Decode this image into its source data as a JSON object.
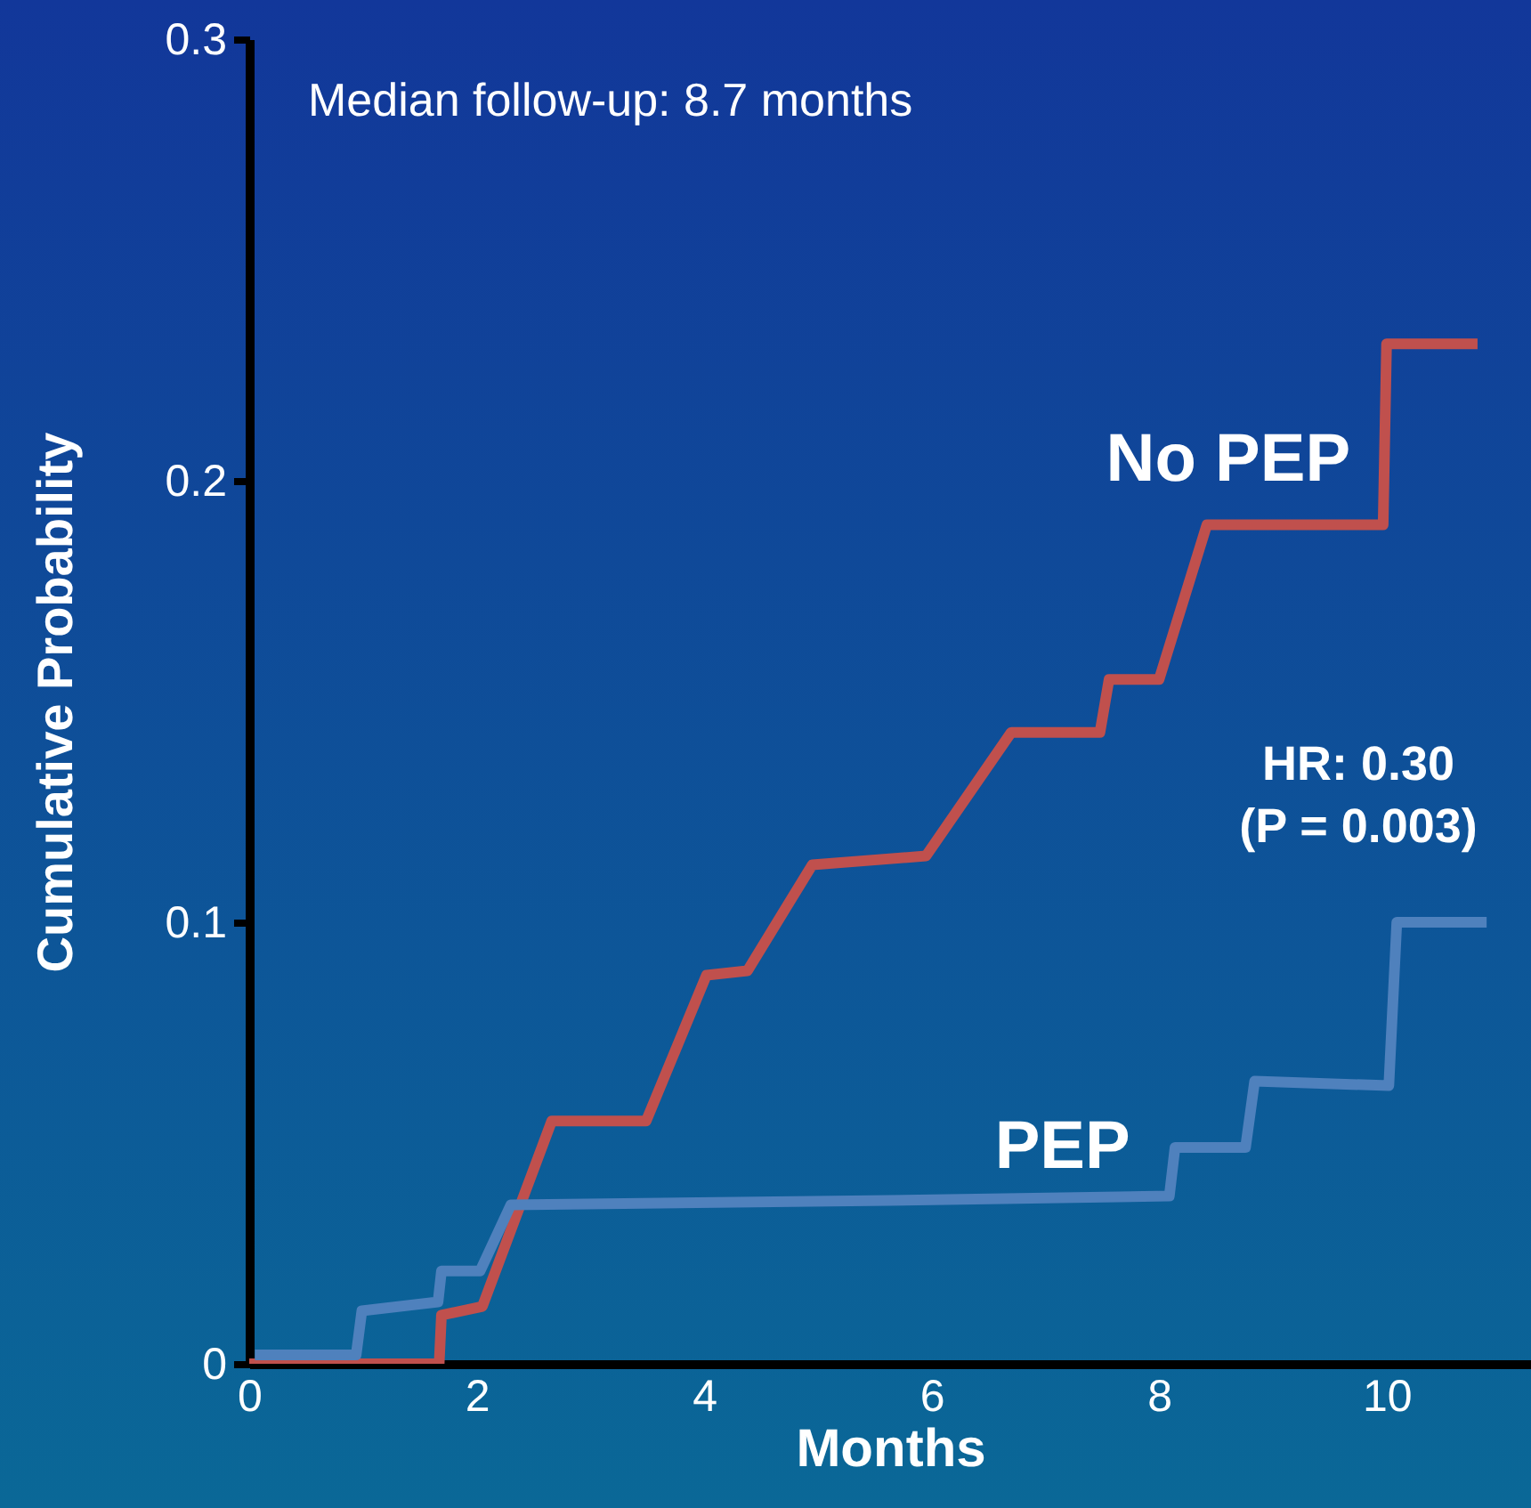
{
  "chart_data": {
    "type": "line",
    "xlabel": "Months",
    "ylabel": "Cumulative Probability",
    "xlim": [
      0,
      11.27
    ],
    "xticks": [
      0,
      2,
      4,
      6,
      8,
      10
    ],
    "ylim": [
      0,
      0.3
    ],
    "yticks": [
      0,
      0.1,
      0.2,
      0.3
    ],
    "grid": false,
    "legend": false,
    "marker": "none",
    "line_style": "solid",
    "annotations": [
      "Median follow-up: 8.7 months",
      "HR: 0.30\n(P = 0.003)"
    ],
    "series": [
      {
        "name": "No PEP",
        "color": "#c0504d",
        "x": [
          0,
          1.67,
          1.69,
          2.05,
          2.66,
          3.49,
          4.02,
          4.38,
          4.95,
          5.95,
          6.7,
          7.48,
          7.56,
          8.0,
          8.42,
          9.97,
          10.0,
          10.8
        ],
        "values": [
          0,
          0,
          0.011,
          0.013,
          0.055,
          0.055,
          0.088,
          0.089,
          0.113,
          0.115,
          0.143,
          0.143,
          0.155,
          0.155,
          0.19,
          0.19,
          0.231,
          0.231
        ]
      },
      {
        "name": "PEP",
        "color": "#4f81bd",
        "x": [
          0.05,
          0.94,
          0.99,
          1.66,
          1.69,
          2.03,
          2.3,
          5.63,
          8.09,
          8.14,
          8.76,
          8.84,
          10.02,
          10.09,
          10.88
        ],
        "values": [
          0.002,
          0.002,
          0.012,
          0.014,
          0.021,
          0.021,
          0.036,
          0.037,
          0.038,
          0.049,
          0.049,
          0.064,
          0.063,
          0.1,
          0.1
        ]
      }
    ]
  }
}
